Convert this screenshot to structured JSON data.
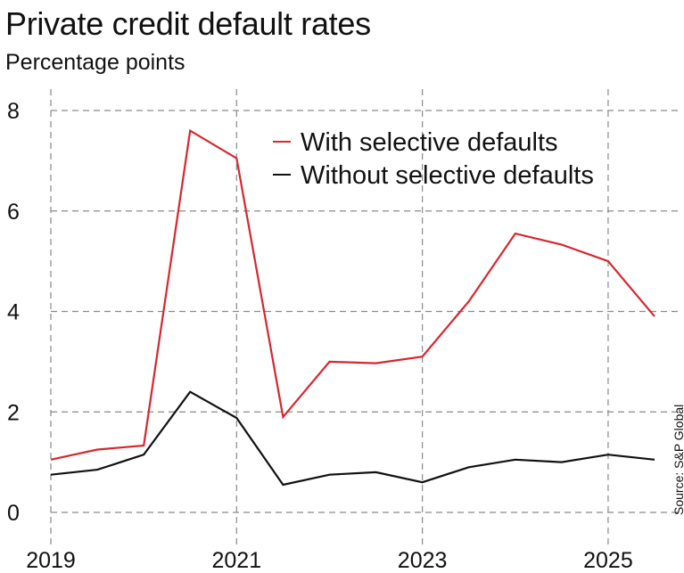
{
  "chart_data": {
    "type": "line",
    "title": "Private credit default rates",
    "subtitle": "Percentage points",
    "xlabel": "",
    "ylabel": "",
    "x": [
      2019.0,
      2019.5,
      2020.0,
      2020.5,
      2021.0,
      2021.5,
      2022.0,
      2022.5,
      2023.0,
      2023.5,
      2024.0,
      2024.5,
      2025.0,
      2025.5
    ],
    "xlim": [
      2019.0,
      2025.5
    ],
    "ylim": [
      0,
      8
    ],
    "x_ticks": [
      2019,
      2021,
      2023,
      2025
    ],
    "y_ticks": [
      0,
      2,
      4,
      6,
      8
    ],
    "grid": true,
    "legend_position": "top-right",
    "series": [
      {
        "name": "With selective defaults",
        "color": "#d7262e",
        "values": [
          1.05,
          1.25,
          1.33,
          7.6,
          7.05,
          1.9,
          3.0,
          2.97,
          3.1,
          4.2,
          5.55,
          5.33,
          5.0,
          3.9
        ]
      },
      {
        "name": "Without selective defaults",
        "color": "#111111",
        "values": [
          0.75,
          0.85,
          1.15,
          2.4,
          1.88,
          0.55,
          0.75,
          0.8,
          0.6,
          0.9,
          1.05,
          1.0,
          1.15,
          1.05
        ]
      }
    ],
    "source": "Source: S&P Global"
  }
}
